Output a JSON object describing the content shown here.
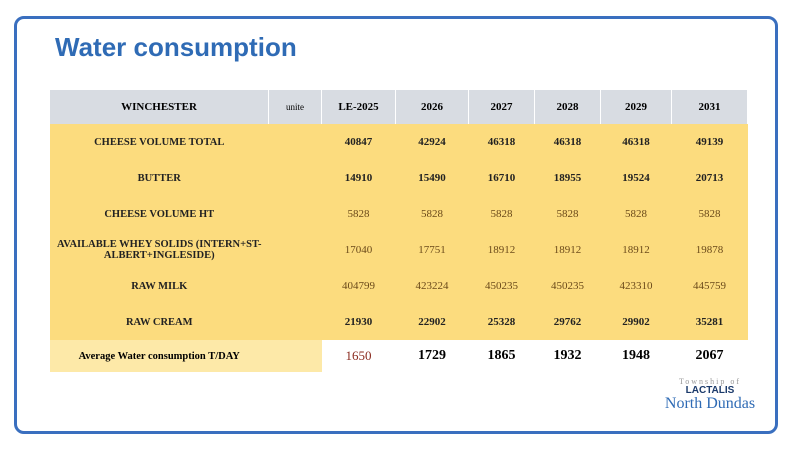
{
  "header": {
    "title": "Water consumption"
  },
  "table": {
    "columns": [
      "WINCHESTER",
      "unite",
      "LE-2025",
      "2026",
      "2027",
      "2028",
      "2029",
      "2031"
    ],
    "rows": [
      [
        "CHEESE VOLUME TOTAL",
        "",
        40847,
        42924,
        46318,
        46318,
        46318,
        49139
      ],
      [
        "BUTTER",
        "",
        14910,
        15490,
        16710,
        18955,
        19524,
        20713
      ],
      [
        "CHEESE VOLUME HT",
        "",
        5828,
        5828,
        5828,
        5828,
        5828,
        5828
      ],
      [
        "AVAILABLE WHEY SOLIDS (INTERN+ST-ALBERT+INGLESIDE)",
        "",
        17040,
        17751,
        18912,
        18912,
        18912,
        19878
      ],
      [
        "RAW MILK",
        "",
        404799,
        423224,
        450235,
        450235,
        423310,
        445759
      ],
      [
        "RAW CREAM",
        "",
        21930,
        22902,
        25328,
        29762,
        29902,
        35281
      ],
      [
        "Average Water consumption T/DAY",
        "",
        1650,
        1729,
        1865,
        1932,
        1948,
        2067
      ]
    ]
  },
  "logo": {
    "township": "Township of",
    "name": "North Dundas",
    "company": "LACTALIS"
  }
}
